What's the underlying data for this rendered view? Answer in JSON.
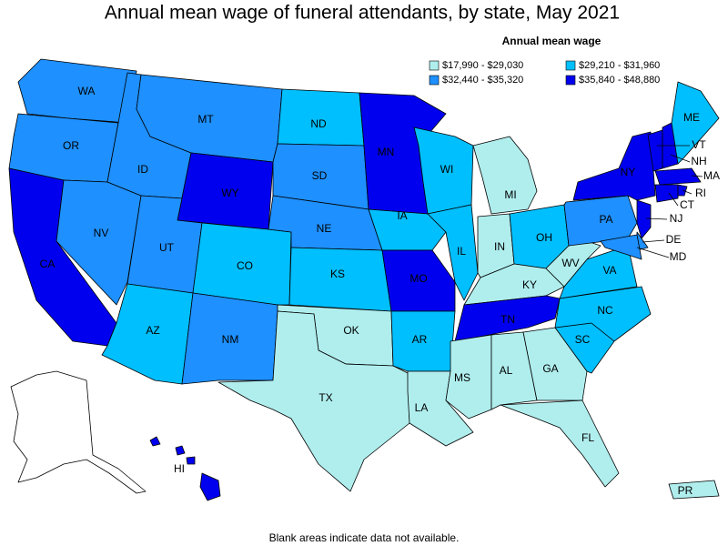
{
  "title": "Annual mean wage of funeral attendants, by state, May 2021",
  "legend": {
    "title": "Annual mean wage",
    "items": [
      {
        "label": "$17,990 - $29,030",
        "color": "#b0eeee"
      },
      {
        "label": "$29,210 - $31,960",
        "color": "#00bfff"
      },
      {
        "label": "$32,440 - $35,320",
        "color": "#1e90ff"
      },
      {
        "label": "$35,840 - $48,880",
        "color": "#0000ee"
      }
    ]
  },
  "states": [
    {
      "label": "WA",
      "color": "#1e90ff"
    },
    {
      "label": "OR",
      "color": "#1e90ff"
    },
    {
      "label": "CA",
      "color": "#0000ee"
    },
    {
      "label": "NV",
      "color": "#1e90ff"
    },
    {
      "label": "ID",
      "color": "#1e90ff"
    },
    {
      "label": "MT",
      "color": "#1e90ff"
    },
    {
      "label": "WY",
      "color": "#0000ee"
    },
    {
      "label": "UT",
      "color": "#1e90ff"
    },
    {
      "label": "CO",
      "color": "#00bfff"
    },
    {
      "label": "AZ",
      "color": "#00bfff"
    },
    {
      "label": "NM",
      "color": "#1e90ff"
    },
    {
      "label": "ND",
      "color": "#00bfff"
    },
    {
      "label": "SD",
      "color": "#1e90ff"
    },
    {
      "label": "NE",
      "color": "#1e90ff"
    },
    {
      "label": "KS",
      "color": "#00bfff"
    },
    {
      "label": "OK",
      "color": "#b0eeee"
    },
    {
      "label": "TX",
      "color": "#b0eeee"
    },
    {
      "label": "MN",
      "color": "#0000ee"
    },
    {
      "label": "IA",
      "color": "#00bfff"
    },
    {
      "label": "MO",
      "color": "#0000ee"
    },
    {
      "label": "AR",
      "color": "#00bfff"
    },
    {
      "label": "LA",
      "color": "#b0eeee"
    },
    {
      "label": "WI",
      "color": "#00bfff"
    },
    {
      "label": "IL",
      "color": "#00bfff"
    },
    {
      "label": "MI",
      "color": "#b0eeee"
    },
    {
      "label": "IN",
      "color": "#b0eeee"
    },
    {
      "label": "OH",
      "color": "#00bfff"
    },
    {
      "label": "KY",
      "color": "#b0eeee"
    },
    {
      "label": "TN",
      "color": "#0000ee"
    },
    {
      "label": "MS",
      "color": "#b0eeee"
    },
    {
      "label": "AL",
      "color": "#b0eeee"
    },
    {
      "label": "GA",
      "color": "#b0eeee"
    },
    {
      "label": "FL",
      "color": "#b0eeee"
    },
    {
      "label": "SC",
      "color": "#00bfff"
    },
    {
      "label": "NC",
      "color": "#00bfff"
    },
    {
      "label": "VA",
      "color": "#00bfff"
    },
    {
      "label": "WV",
      "color": "#b0eeee"
    },
    {
      "label": "PA",
      "color": "#1e90ff"
    },
    {
      "label": "NY",
      "color": "#0000ee"
    },
    {
      "label": "NJ",
      "color": "#0000ee"
    },
    {
      "label": "DE",
      "color": "#1e90ff"
    },
    {
      "label": "MD",
      "color": "#1e90ff"
    },
    {
      "label": "VT",
      "color": "#0000ee"
    },
    {
      "label": "NH",
      "color": "#0000ee"
    },
    {
      "label": "ME",
      "color": "#00bfff"
    },
    {
      "label": "MA",
      "color": "#0000ee"
    },
    {
      "label": "CT",
      "color": "#0000ee"
    },
    {
      "label": "RI",
      "color": "#0000ee"
    },
    {
      "label": "HI",
      "color": "#0000ee"
    },
    {
      "label": "PR",
      "color": "#b0eeee"
    }
  ],
  "footnote": "Blank areas indicate data not available."
}
